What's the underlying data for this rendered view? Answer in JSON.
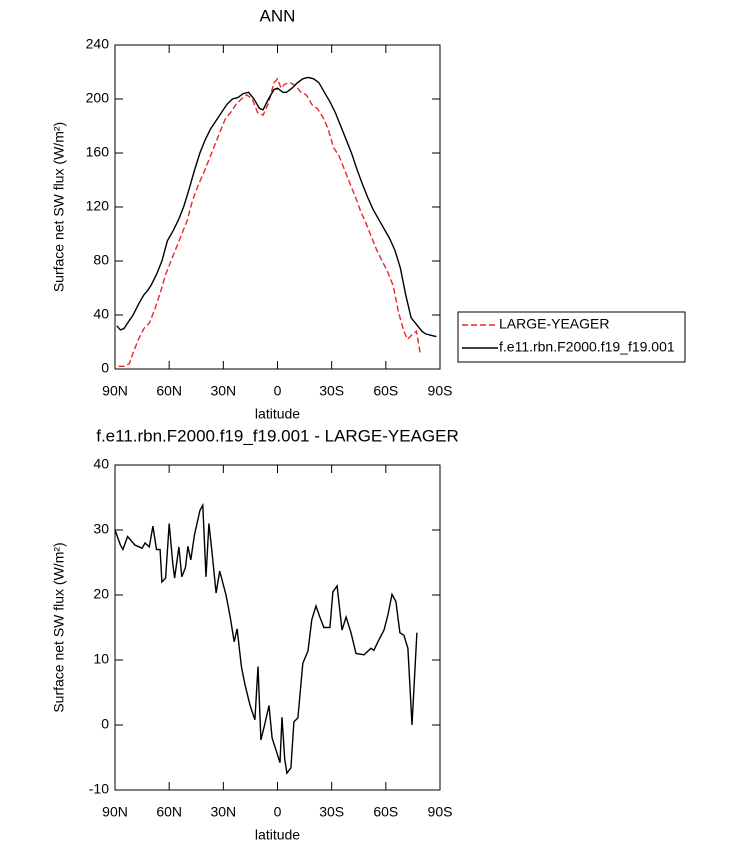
{
  "chart_data": [
    {
      "type": "line",
      "title": "ANN",
      "xlabel": "latitude",
      "ylabel": "Surface net SW flux (W/m²)",
      "xlim": [
        90,
        -90
      ],
      "xticks": [
        {
          "value": 90,
          "label": "90N"
        },
        {
          "value": 60,
          "label": "60N"
        },
        {
          "value": 30,
          "label": "30N"
        },
        0,
        {
          "value": -30,
          "label": "30S"
        },
        {
          "value": -60,
          "label": "60S"
        },
        {
          "value": -90,
          "label": "90S"
        }
      ],
      "ylim": [
        0,
        240
      ],
      "yticks": [
        0,
        40,
        80,
        120,
        160,
        200,
        240
      ],
      "legend": "right",
      "series": [
        {
          "name": "LARGE-YEAGER",
          "color": "#e8282b",
          "dash": true,
          "x": [
            88,
            85,
            82,
            80,
            77,
            74,
            71,
            68,
            65,
            62,
            59,
            56,
            53,
            50,
            47,
            44,
            41,
            38,
            35,
            32,
            29,
            26,
            23,
            20,
            17,
            14,
            11,
            8,
            5,
            2,
            0,
            -2,
            -4,
            -7,
            -10,
            -13,
            -16,
            -19,
            -22,
            -25,
            -28,
            -31,
            -34,
            -37,
            -40,
            -43,
            -46,
            -49,
            -52,
            -55,
            -58,
            -61,
            -64,
            -67,
            -70,
            -72,
            -75,
            -77,
            -79
          ],
          "values": [
            2,
            2,
            4,
            12,
            22,
            30,
            34,
            44,
            56,
            70,
            80,
            90,
            100,
            110,
            125,
            136,
            145,
            155,
            165,
            175,
            185,
            190,
            196,
            200,
            203,
            200,
            190,
            188,
            197,
            212,
            215,
            208,
            211,
            212,
            210,
            205,
            203,
            196,
            193,
            187,
            178,
            164,
            158,
            148,
            138,
            128,
            117,
            108,
            98,
            88,
            80,
            72,
            62,
            42,
            28,
            22,
            26,
            28,
            12
          ]
        },
        {
          "name": "f.e11.rbn.F2000.f19_f19.001",
          "color": "#000000",
          "dash": false,
          "x": [
            89,
            87,
            85,
            82,
            80,
            77,
            74,
            72,
            70,
            67,
            64,
            61,
            58,
            55,
            52,
            49,
            46,
            43,
            40,
            37,
            34,
            31,
            28,
            25,
            22,
            19,
            16,
            13,
            10,
            8,
            5,
            2,
            0,
            -3,
            -5,
            -8,
            -11,
            -14,
            -17,
            -20,
            -23,
            -26,
            -29,
            -32,
            -35,
            -38,
            -41,
            -44,
            -47,
            -50,
            -53,
            -56,
            -59,
            -62,
            -65,
            -68,
            -71,
            -74,
            -77,
            -80,
            -82,
            -85,
            -88
          ],
          "values": [
            32,
            29,
            30,
            36,
            40,
            48,
            55,
            58,
            62,
            70,
            80,
            95,
            102,
            110,
            120,
            133,
            147,
            160,
            170,
            178,
            184,
            190,
            196,
            200,
            201,
            204,
            205,
            200,
            193,
            192,
            200,
            207,
            208,
            205,
            205,
            208,
            212,
            215,
            216,
            215,
            212,
            205,
            198,
            190,
            180,
            170,
            160,
            148,
            137,
            127,
            118,
            111,
            104,
            97,
            88,
            75,
            55,
            38,
            33,
            28,
            26,
            25,
            24
          ]
        }
      ]
    },
    {
      "type": "line",
      "title": "f.e11.rbn.F2000.f19_f19.001 - LARGE-YEAGER",
      "xlabel": "latitude",
      "ylabel": "Surface net SW flux (W/m²)",
      "xlim": [
        90,
        -90
      ],
      "xticks": [
        {
          "value": 90,
          "label": "90N"
        },
        {
          "value": 60,
          "label": "60N"
        },
        {
          "value": 30,
          "label": "30N"
        },
        0,
        {
          "value": -30,
          "label": "30S"
        },
        {
          "value": -60,
          "label": "60S"
        },
        {
          "value": -90,
          "label": "90S"
        }
      ],
      "ylim": [
        -10,
        40
      ],
      "yticks": [
        -10,
        0,
        10,
        20,
        30,
        40
      ],
      "series": [
        {
          "color": "#000000",
          "dash": false,
          "x": [
            90,
            87,
            85.6,
            83,
            79,
            75,
            73.4,
            71,
            69,
            67,
            65,
            64,
            62,
            60,
            58,
            57,
            54.6,
            53,
            51,
            49.6,
            48,
            46,
            43,
            41.4,
            39.6,
            38,
            36.3,
            34,
            32,
            28.5,
            26.3,
            24,
            22.4,
            20,
            18,
            15.2,
            12.5,
            10.8,
            9.2,
            7,
            4.7,
            3,
            0.9,
            -1.4,
            -2.5,
            -4,
            -5.2,
            -7.4,
            -9.1,
            -11.3,
            -14,
            -16.9,
            -19,
            -21.3,
            -23.5,
            -25.7,
            -29,
            -30.7,
            -33,
            -35.7,
            -38,
            -40.7,
            -43.5,
            -48,
            -49,
            -51.8,
            -53.4,
            -55.6,
            -59,
            -61.2,
            -63.4,
            -65.6,
            -67.8,
            -70,
            -72.2,
            -74.5,
            -77.2
          ],
          "values": [
            30,
            27.7,
            27,
            29,
            27.7,
            27.2,
            28,
            27.4,
            30.6,
            27,
            27,
            22,
            22.6,
            31,
            24.8,
            22.6,
            27.4,
            22.8,
            24.2,
            27.5,
            25.4,
            29.2,
            33,
            33.8,
            22.8,
            31,
            26.6,
            20.3,
            23.7,
            20,
            16.8,
            12.8,
            14.8,
            9,
            6.2,
            3,
            0.8,
            9,
            -2.3,
            0.2,
            3,
            -2,
            -3.8,
            -5.8,
            1.2,
            -5.2,
            -7.4,
            -6.6,
            0.5,
            1.1,
            9.5,
            11.4,
            16.2,
            18.3,
            16.6,
            15,
            15,
            20.5,
            21.4,
            14.6,
            16.6,
            14.2,
            11,
            10.8,
            11.1,
            11.8,
            11.5,
            12.8,
            14.6,
            17,
            20.1,
            19,
            14.2,
            13.8,
            11.8,
            0,
            14.2
          ]
        }
      ]
    }
  ]
}
